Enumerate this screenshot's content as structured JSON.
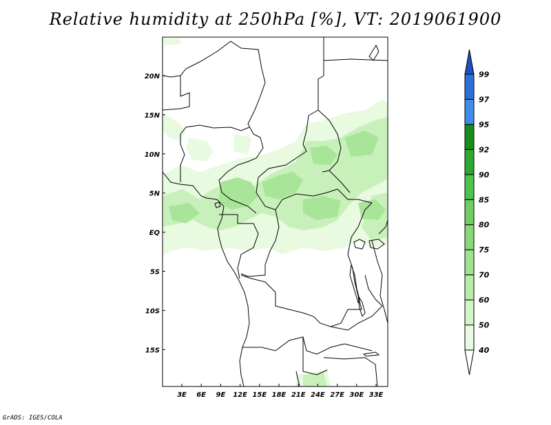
{
  "title": "Relative humidity at 250hPa [%], VT: 2019061900",
  "footer": "GrADS: IGES/COLA",
  "map": {
    "lat_labels": [
      "20N",
      "15N",
      "10N",
      "5N",
      "EQ",
      "5S",
      "10S",
      "15S"
    ],
    "lon_labels": [
      "3E",
      "6E",
      "9E",
      "12E",
      "15E",
      "18E",
      "21E",
      "24E",
      "27E",
      "30E",
      "33E"
    ],
    "extent": {
      "lon_min": 0,
      "lon_max": 35,
      "lat_min": -20,
      "lat_max": 25
    }
  },
  "colorbar": {
    "labels": [
      "40",
      "50",
      "60",
      "70",
      "75",
      "80",
      "85",
      "90",
      "92",
      "95",
      "97",
      "99"
    ],
    "colors": [
      "#ffffff",
      "#e8fae0",
      "#d2f5c8",
      "#b7eba8",
      "#a0e290",
      "#87d878",
      "#6fcd62",
      "#4dc24d",
      "#2ea82e",
      "#198c19",
      "#3d8fe8",
      "#2e6fd8",
      "#1f4fc0"
    ]
  }
}
